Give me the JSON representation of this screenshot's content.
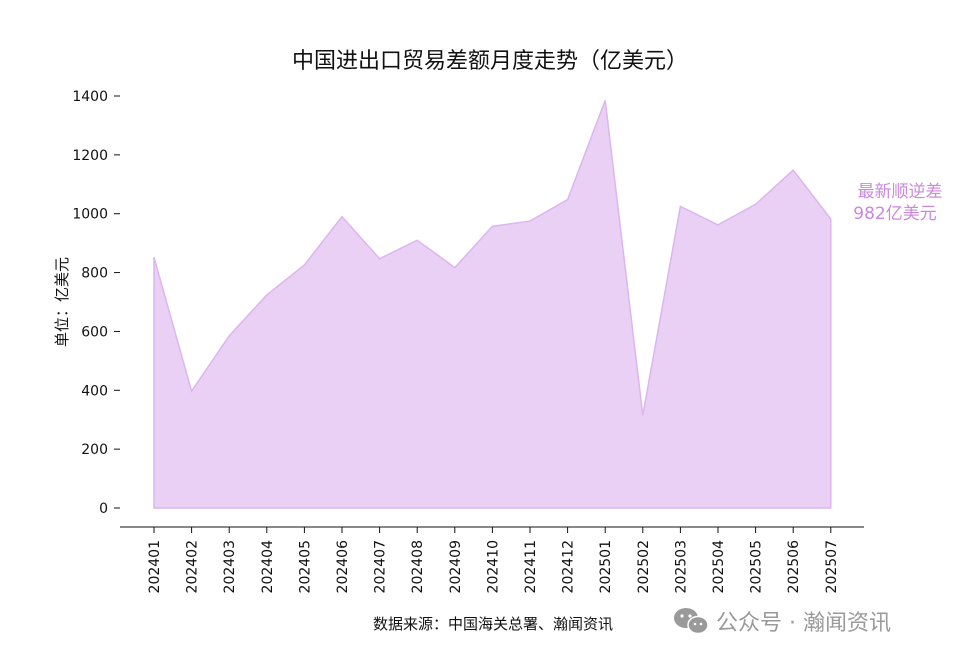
{
  "chart_data": {
    "type": "area",
    "title": "中国进出口贸易差额月度走势（亿美元）",
    "ylabel": "单位：亿美元",
    "xlabel": "",
    "categories": [
      "202401",
      "202402",
      "202403",
      "202404",
      "202405",
      "202406",
      "202407",
      "202408",
      "202409",
      "202410",
      "202411",
      "202412",
      "202501",
      "202502",
      "202503",
      "202504",
      "202505",
      "202506",
      "202507"
    ],
    "values": [
      852,
      397,
      585,
      724,
      826,
      990,
      847,
      910,
      817,
      957,
      975,
      1048,
      1385,
      315,
      1025,
      962,
      1032,
      1148,
      982
    ],
    "ylim": [
      0,
      1400
    ],
    "yticks": [
      0,
      200,
      400,
      600,
      800,
      1000,
      1200,
      1400
    ],
    "grid": false,
    "legend": "none",
    "fill_color": "#e9d0f4",
    "line_color": "#dcb6ee",
    "annotation": {
      "line1": "最新顺逆差",
      "line2": "982亿美元",
      "color": "#cc88dd"
    }
  },
  "source": "数据来源：中国海关总署、瀚闻资讯",
  "watermark": {
    "text": "公众号 · 瀚闻资讯",
    "icon": "wechat-icon"
  }
}
